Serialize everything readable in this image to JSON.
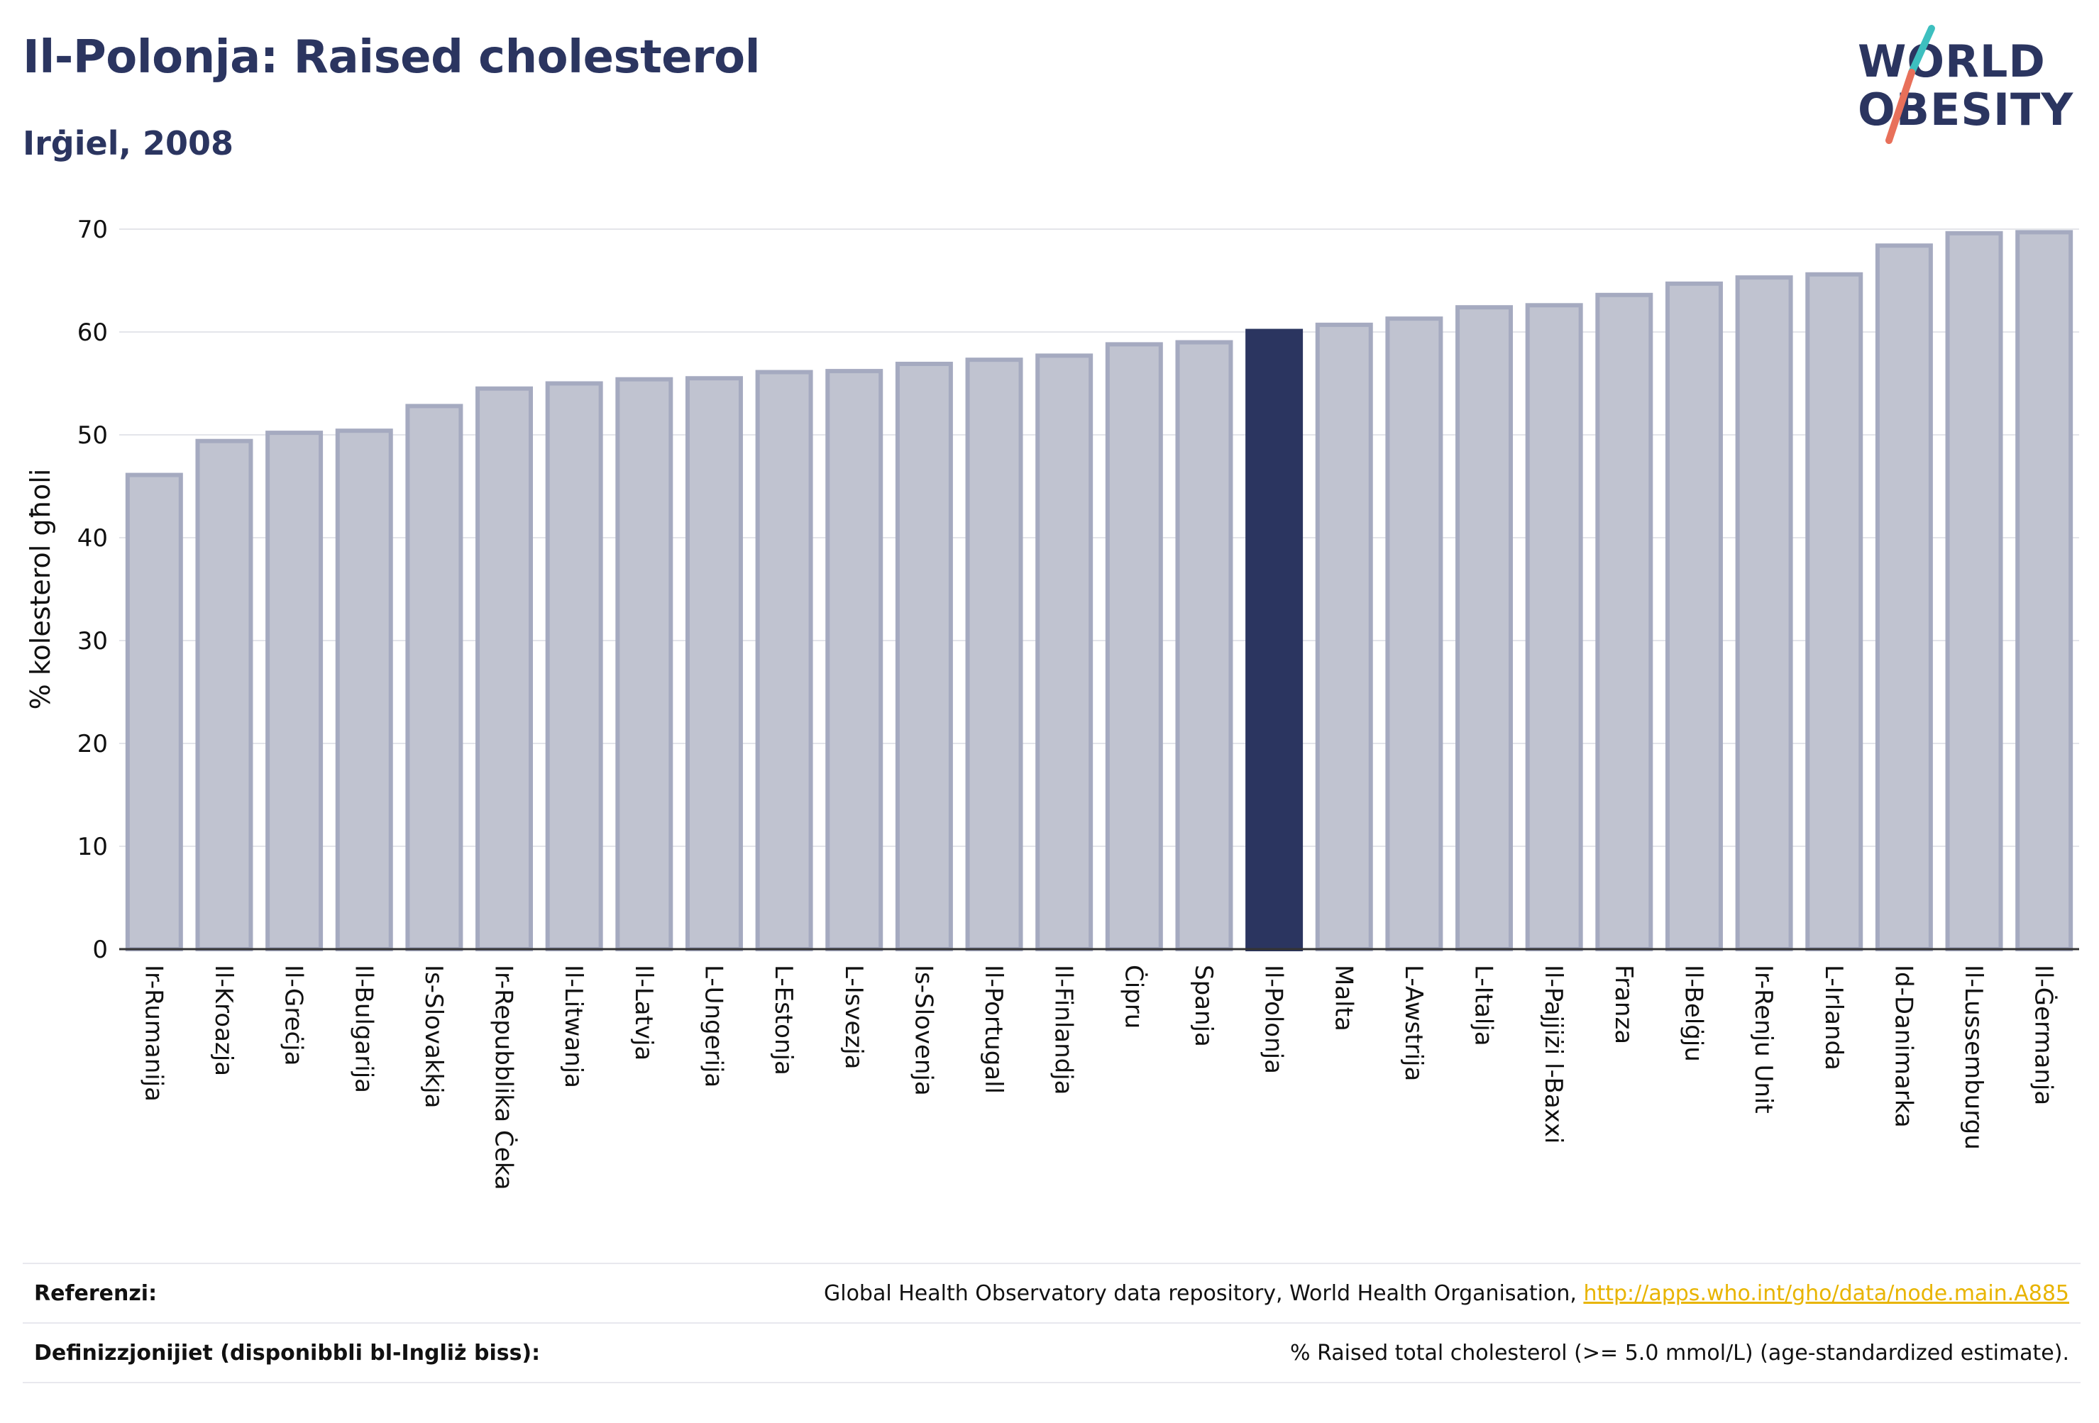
{
  "header": {
    "title": "Il-Polonja: Raised cholesterol",
    "subtitle": "Irġiel, 2008"
  },
  "logo": {
    "line1": "WORLD",
    "line2": "OBESITY",
    "colors": {
      "text": "#2b3560",
      "slash_teal": "#3dbfbf",
      "slash_coral": "#e8705a"
    }
  },
  "chart_data": {
    "type": "bar",
    "title": "",
    "xlabel": "",
    "ylabel": "% kolesterol għoli",
    "ylim": [
      0,
      70
    ],
    "yticks": [
      0,
      10,
      20,
      30,
      40,
      50,
      60,
      70
    ],
    "grid": true,
    "highlight": "Il-Polonja",
    "colors": {
      "bar": "#c0c3d0",
      "bar_border": "#a5aac0",
      "highlight": "#2b3560"
    },
    "categories": [
      "Ir-Rumanija",
      "Il-Kroazja",
      "Il-Greċja",
      "Il-Bulgarija",
      "Is-Slovakkja",
      "Ir-Repubblika Ċeka",
      "Il-Litwanja",
      "Il-Latvja",
      "L-Ungerija",
      "L-Estonja",
      "L-Isvezja",
      "Is-Slovenja",
      "Il-Portugall",
      "Il-Finlandja",
      "Ċipru",
      "Spanja",
      "Il-Polonja",
      "Malta",
      "L-Awstrija",
      "L-Italja",
      "Il-Pajjiżi l-Baxxi",
      "Franza",
      "Il-Belġju",
      "Ir-Renju Unit",
      "L-Irlanda",
      "Id-Danimarka",
      "Il-Lussemburgu",
      "Il-Ġermanja"
    ],
    "values": [
      46.1,
      49.4,
      50.2,
      50.4,
      52.8,
      54.5,
      55.0,
      55.4,
      55.5,
      56.1,
      56.2,
      56.9,
      57.3,
      57.7,
      58.8,
      59.0,
      60.1,
      60.7,
      61.3,
      62.4,
      62.6,
      63.6,
      64.7,
      65.3,
      65.6,
      68.4,
      69.6,
      69.7
    ]
  },
  "footer": {
    "references_label": "Referenzi:",
    "references_text": "Global Health Observatory data repository, World Health Organisation,",
    "references_link": "http://apps.who.int/gho/data/node.main.A885",
    "definitions_label": "Definizzjonijiet (disponibbli bl-Ingliż biss):",
    "definitions_text": "% Raised total cholesterol (>= 5.0 mmol/L) (age-standardized estimate)."
  }
}
